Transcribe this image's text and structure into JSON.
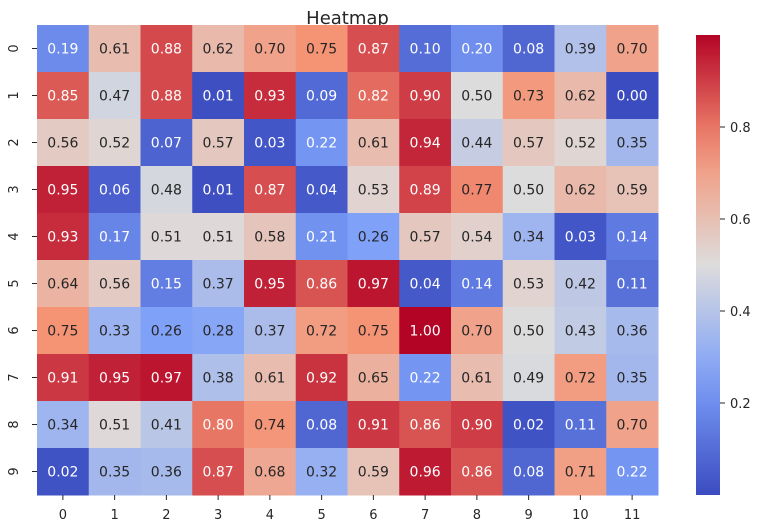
{
  "chart_data": {
    "type": "heatmap",
    "title": "Heatmap",
    "xlabel": "",
    "ylabel": "",
    "x_categories": [
      "0",
      "1",
      "2",
      "3",
      "4",
      "5",
      "6",
      "7",
      "8",
      "9",
      "10",
      "11"
    ],
    "y_categories": [
      "0",
      "1",
      "2",
      "3",
      "4",
      "5",
      "6",
      "7",
      "8",
      "9"
    ],
    "values": [
      [
        0.19,
        0.61,
        0.88,
        0.62,
        0.7,
        0.75,
        0.87,
        0.1,
        0.2,
        0.08,
        0.39,
        0.7
      ],
      [
        0.85,
        0.47,
        0.88,
        0.01,
        0.93,
        0.09,
        0.82,
        0.9,
        0.5,
        0.73,
        0.62,
        0.0
      ],
      [
        0.56,
        0.52,
        0.07,
        0.57,
        0.03,
        0.22,
        0.61,
        0.94,
        0.44,
        0.57,
        0.52,
        0.35
      ],
      [
        0.95,
        0.06,
        0.48,
        0.01,
        0.87,
        0.04,
        0.53,
        0.89,
        0.77,
        0.5,
        0.62,
        0.59
      ],
      [
        0.93,
        0.17,
        0.51,
        0.51,
        0.58,
        0.21,
        0.26,
        0.57,
        0.54,
        0.34,
        0.03,
        0.14
      ],
      [
        0.64,
        0.56,
        0.15,
        0.37,
        0.95,
        0.86,
        0.97,
        0.04,
        0.14,
        0.53,
        0.42,
        0.11
      ],
      [
        0.75,
        0.33,
        0.26,
        0.28,
        0.37,
        0.72,
        0.75,
        1.0,
        0.7,
        0.5,
        0.43,
        0.36
      ],
      [
        0.91,
        0.95,
        0.97,
        0.38,
        0.61,
        0.92,
        0.65,
        0.22,
        0.61,
        0.49,
        0.72,
        0.35
      ],
      [
        0.34,
        0.51,
        0.41,
        0.8,
        0.74,
        0.08,
        0.91,
        0.86,
        0.9,
        0.02,
        0.11,
        0.7
      ],
      [
        0.02,
        0.35,
        0.36,
        0.87,
        0.68,
        0.32,
        0.59,
        0.96,
        0.86,
        0.08,
        0.71,
        0.22
      ]
    ],
    "value_range": [
      0.0,
      1.0
    ],
    "colormap": "coolwarm",
    "colorbar_ticks": [
      0.2,
      0.4,
      0.6,
      0.8
    ],
    "annotation_format": "0.00",
    "grid": false
  }
}
